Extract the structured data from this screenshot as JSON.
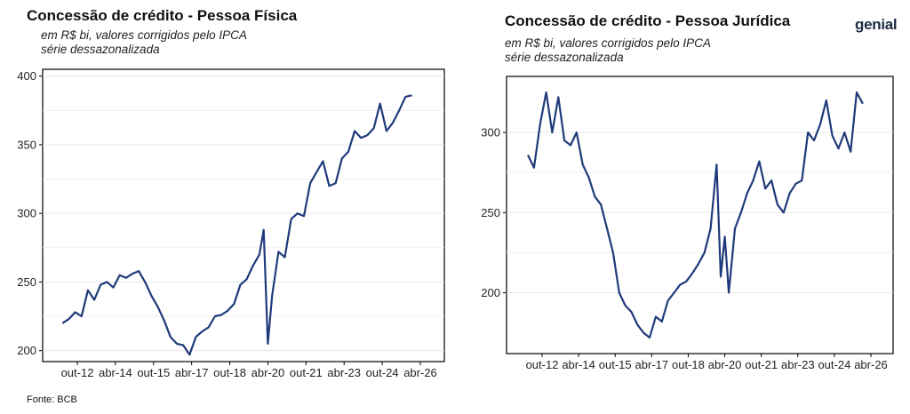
{
  "brand": "genial",
  "source": "Fonte: BCB",
  "chart_data": [
    {
      "type": "line",
      "title": "Concessão de crédito - Pessoa Física",
      "subtitle_lines": [
        "em R$ bi, valores corrigidos pelo IPCA",
        "série dessazonalizada"
      ],
      "line_color": "#1f3a7a",
      "grid": "horizontal",
      "x_tick_labels": [
        "out-12",
        "abr-14",
        "out-15",
        "abr-17",
        "out-18",
        "abr-20",
        "out-21",
        "abr-23",
        "out-24",
        "abr-26"
      ],
      "y_ticks": [
        200,
        250,
        300,
        350,
        400
      ],
      "ylim": [
        192,
        405
      ],
      "series": [
        {
          "x": [
            "2012-03",
            "2012-06",
            "2012-09",
            "2012-12",
            "2013-03",
            "2013-06",
            "2013-09",
            "2013-12",
            "2014-03",
            "2014-06",
            "2014-09",
            "2014-12",
            "2015-03",
            "2015-06",
            "2015-09",
            "2015-12",
            "2016-03",
            "2016-06",
            "2016-09",
            "2016-12",
            "2017-03",
            "2017-06",
            "2017-09",
            "2017-12",
            "2018-03",
            "2018-06",
            "2018-09",
            "2018-12",
            "2019-03",
            "2019-06",
            "2019-09",
            "2019-12",
            "2020-02",
            "2020-04",
            "2020-06",
            "2020-09",
            "2020-12",
            "2021-03",
            "2021-06",
            "2021-09",
            "2021-12",
            "2022-03",
            "2022-06",
            "2022-09",
            "2022-12",
            "2023-03",
            "2023-06",
            "2023-09",
            "2023-12",
            "2024-03",
            "2024-06",
            "2024-09",
            "2024-12",
            "2025-03",
            "2025-06",
            "2025-09",
            "2025-12"
          ],
          "values": [
            220,
            223,
            228,
            225,
            244,
            237,
            248,
            250,
            246,
            255,
            253,
            256,
            258,
            250,
            240,
            232,
            222,
            210,
            205,
            204,
            197,
            210,
            214,
            217,
            225,
            226,
            229,
            234,
            248,
            252,
            262,
            270,
            288,
            205,
            240,
            272,
            268,
            296,
            300,
            298,
            322,
            330,
            338,
            320,
            322,
            340,
            345,
            360,
            355,
            357,
            362,
            380,
            360,
            366,
            375,
            385,
            386
          ]
        }
      ]
    },
    {
      "type": "line",
      "title": "Concessão de crédito - Pessoa Jurídica",
      "subtitle_lines": [
        "em R$ bi, valores corrigidos pelo IPCA",
        "série dessazonalizada"
      ],
      "line_color": "#1f3a7a",
      "grid": "horizontal",
      "x_tick_labels": [
        "out-12",
        "abr-14",
        "out-15",
        "abr-17",
        "out-18",
        "abr-20",
        "out-21",
        "abr-23",
        "out-24",
        "abr-26"
      ],
      "y_ticks": [
        200,
        250,
        300
      ],
      "ylim": [
        162,
        335
      ],
      "series": [
        {
          "x": [
            "2012-03",
            "2012-06",
            "2012-09",
            "2012-12",
            "2013-03",
            "2013-06",
            "2013-09",
            "2013-12",
            "2014-03",
            "2014-06",
            "2014-09",
            "2014-12",
            "2015-03",
            "2015-06",
            "2015-09",
            "2015-12",
            "2016-03",
            "2016-06",
            "2016-09",
            "2016-12",
            "2017-03",
            "2017-06",
            "2017-09",
            "2017-12",
            "2018-03",
            "2018-06",
            "2018-09",
            "2018-12",
            "2019-03",
            "2019-06",
            "2019-09",
            "2019-12",
            "2020-02",
            "2020-04",
            "2020-06",
            "2020-09",
            "2020-12",
            "2021-03",
            "2021-06",
            "2021-09",
            "2021-12",
            "2022-03",
            "2022-06",
            "2022-09",
            "2022-12",
            "2023-03",
            "2023-06",
            "2023-09",
            "2023-12",
            "2024-03",
            "2024-06",
            "2024-09",
            "2024-12",
            "2025-03",
            "2025-06",
            "2025-09",
            "2025-12"
          ],
          "values": [
            286,
            278,
            305,
            325,
            300,
            322,
            295,
            292,
            300,
            280,
            272,
            260,
            255,
            240,
            225,
            200,
            192,
            188,
            180,
            175,
            172,
            185,
            182,
            195,
            200,
            205,
            207,
            212,
            218,
            225,
            240,
            280,
            210,
            235,
            200,
            240,
            250,
            262,
            270,
            282,
            265,
            270,
            255,
            250,
            262,
            268,
            270,
            300,
            295,
            305,
            320,
            298,
            290,
            300,
            288,
            325,
            318
          ]
        }
      ]
    }
  ]
}
